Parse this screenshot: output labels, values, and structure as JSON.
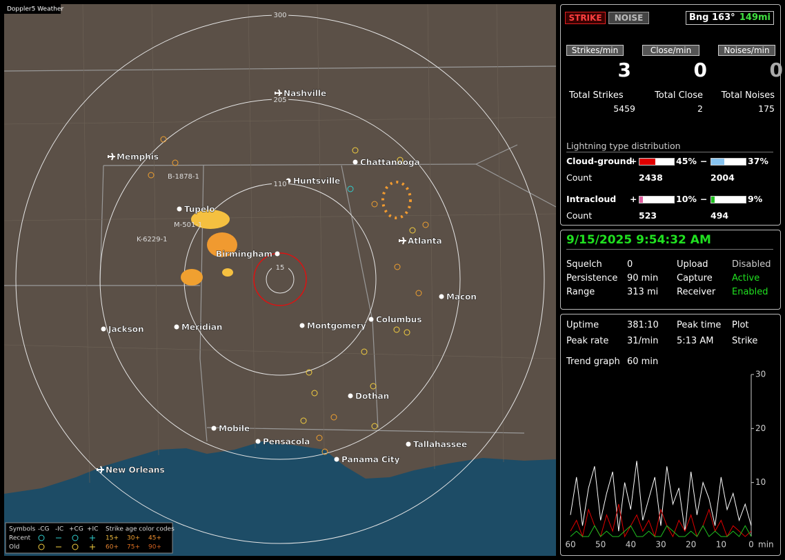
{
  "map": {
    "title": "Doppler5 Weather",
    "ring_labels": [
      "300",
      "205",
      "110",
      "15"
    ],
    "cities": [
      {
        "label": "Nashville",
        "airport": true
      },
      {
        "label": "Memphis",
        "airport": true
      },
      {
        "label": "Chattanooga",
        "airport": false
      },
      {
        "label": "Huntsville",
        "airport": false
      },
      {
        "label": "Tupelo",
        "airport": false
      },
      {
        "label": "Atlanta",
        "airport": true
      },
      {
        "label": "Birmingham",
        "airport": false
      },
      {
        "label": "Macon",
        "airport": false
      },
      {
        "label": "Jackson",
        "airport": false
      },
      {
        "label": "Meridian",
        "airport": false
      },
      {
        "label": "Montgomery",
        "airport": false
      },
      {
        "label": "Columbus",
        "airport": false
      },
      {
        "label": "Dothan",
        "airport": false
      },
      {
        "label": "Mobile",
        "airport": false
      },
      {
        "label": "Pensacola",
        "airport": false
      },
      {
        "label": "Tallahassee",
        "airport": false
      },
      {
        "label": "Panama City",
        "airport": false
      },
      {
        "label": "New Orleans",
        "airport": true
      }
    ],
    "strike_tags": [
      "B-1878-1",
      "M-501-1",
      "K-6229-1"
    ],
    "legend": {
      "header": [
        "Symbols",
        "-CG",
        "-IC",
        "+CG",
        "+IC",
        "Strike age color codes"
      ],
      "rows": [
        {
          "label": "Recent",
          "ages": [
            "15+",
            "30+",
            "45+"
          ]
        },
        {
          "label": "Old",
          "ages": [
            "60+",
            "75+",
            "90+"
          ]
        }
      ]
    }
  },
  "panel": {
    "mode_buttons": [
      "STRIKE",
      "NOISE"
    ],
    "bearing": "Bng 163°",
    "distance": "149mi",
    "rates": [
      {
        "label": "Strikes/min",
        "value": 3
      },
      {
        "label": "Close/min",
        "value": 0
      },
      {
        "label": "Noises/min",
        "value": 0
      }
    ],
    "totals": [
      {
        "label": "Total Strikes",
        "value": 5459
      },
      {
        "label": "Total Close",
        "value": 2
      },
      {
        "label": "Total Noises",
        "value": 175
      }
    ],
    "distribution": {
      "title": "Lightning type distribution",
      "signs": [
        "+",
        "−"
      ],
      "count_label": "Count",
      "rows": [
        {
          "name": "Cloud-ground",
          "values": [
            45,
            37
          ],
          "value_labels": [
            "45%",
            "37%"
          ],
          "colors": [
            "#e00000",
            "#88c4f0"
          ],
          "counts": [
            2438,
            2004
          ]
        },
        {
          "name": "Intracloud",
          "values": [
            10,
            9
          ],
          "value_labels": [
            "10%",
            "9%"
          ],
          "colors": [
            "#e060a0",
            "#20c020"
          ],
          "counts": [
            523,
            494
          ]
        }
      ]
    }
  },
  "status": {
    "datetime": "9/15/2025 9:54:32 AM",
    "rows": [
      [
        "Squelch",
        0,
        "Upload",
        "Disabled"
      ],
      [
        "Persistence",
        "90 min",
        "Capture",
        "Active"
      ],
      [
        "Range",
        "313 mi",
        "Receiver",
        "Enabled"
      ]
    ]
  },
  "stats": {
    "rows": [
      [
        "Uptime",
        "381:10",
        "Peak time",
        "Plot"
      ],
      [
        "Peak rate",
        "31/min",
        "5:13 AM",
        "Strike"
      ]
    ],
    "trend_label": "Trend graph",
    "trend_window": "60 min"
  },
  "trend": {
    "type": "line",
    "xlim": [
      60,
      0
    ],
    "xticks": [
      60,
      50,
      40,
      30,
      20,
      10,
      0
    ],
    "x_unit": "min",
    "ylim": [
      0,
      30
    ],
    "yticks": [
      10,
      20,
      30
    ],
    "x": [
      60,
      58,
      56,
      54,
      52,
      50,
      48,
      46,
      44,
      42,
      40,
      38,
      36,
      34,
      32,
      30,
      28,
      26,
      24,
      22,
      20,
      18,
      16,
      14,
      12,
      10,
      8,
      6,
      4,
      2,
      0
    ],
    "series": [
      {
        "color": "#ffffff",
        "values": [
          4,
          11,
          2,
          9,
          13,
          3,
          8,
          12,
          1,
          10,
          5,
          14,
          3,
          7,
          11,
          2,
          13,
          6,
          9,
          1,
          12,
          4,
          10,
          7,
          2,
          11,
          5,
          8,
          3,
          6,
          2
        ]
      },
      {
        "color": "#e00000",
        "values": [
          1,
          3,
          0,
          5,
          2,
          0,
          4,
          1,
          6,
          0,
          2,
          4,
          1,
          3,
          0,
          5,
          2,
          0,
          3,
          1,
          4,
          0,
          2,
          5,
          1,
          3,
          0,
          2,
          1,
          0,
          1
        ]
      },
      {
        "color": "#20c020",
        "values": [
          0,
          1,
          0,
          0,
          2,
          0,
          1,
          0,
          0,
          1,
          2,
          0,
          0,
          1,
          0,
          0,
          2,
          1,
          0,
          0,
          1,
          0,
          2,
          0,
          1,
          0,
          0,
          1,
          0,
          2,
          0
        ]
      }
    ]
  }
}
